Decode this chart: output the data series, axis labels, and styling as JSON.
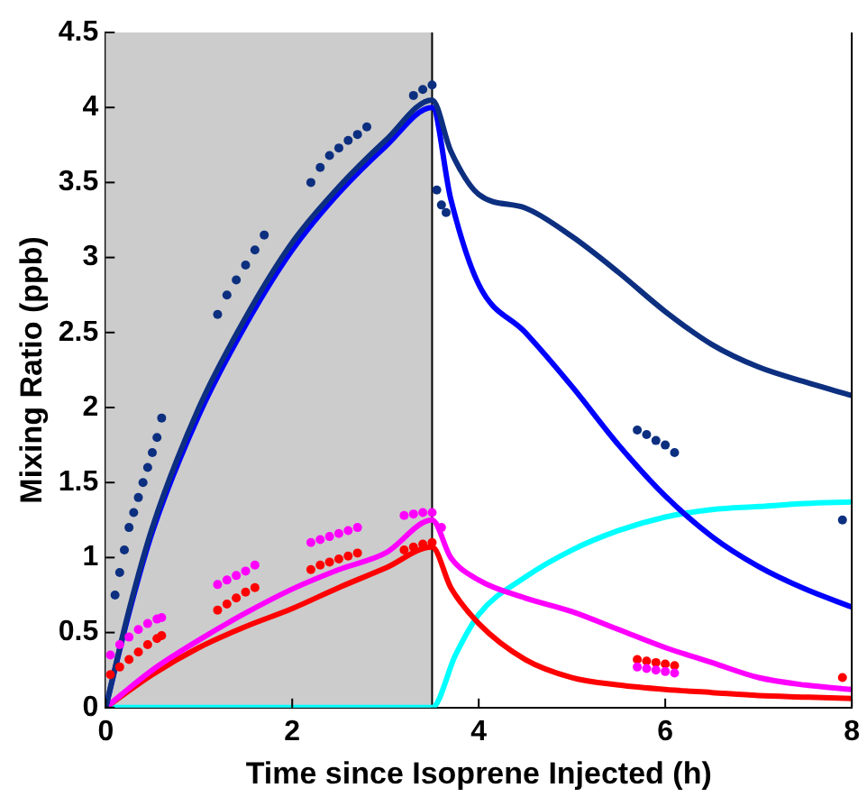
{
  "chart_data": {
    "type": "line",
    "xlabel": "Time since Isoprene Injected (h)",
    "ylabel": "Mixing Ratio (ppb)",
    "xlim": [
      0,
      8
    ],
    "xticks": [
      0,
      2,
      4,
      6,
      8
    ],
    "ylim": [
      0,
      4.5
    ],
    "yticks": [
      0,
      0.5,
      1,
      1.5,
      2,
      2.5,
      3,
      3.5,
      4,
      4.5
    ],
    "grid": false,
    "legend": false,
    "marker": "none",
    "bands": [
      {
        "axis": "x",
        "from": 0,
        "to": 3.5,
        "color": "#cccccc"
      }
    ],
    "ref_lines": [
      {
        "axis": "x",
        "value": 3.5,
        "color": "#000000"
      }
    ],
    "series": [
      {
        "color": "#0d2f80",
        "x": [
          0,
          0.25,
          0.5,
          1,
          1.5,
          2,
          2.5,
          3,
          3.5,
          3.7,
          4,
          4.5,
          5,
          5.5,
          6,
          6.5,
          7,
          7.5,
          8
        ],
        "values": [
          0,
          0.65,
          1.2,
          2.0,
          2.6,
          3.1,
          3.47,
          3.78,
          4.05,
          3.71,
          3.42,
          3.33,
          3.14,
          2.9,
          2.64,
          2.42,
          2.27,
          2.17,
          2.08
        ]
      },
      {
        "color": "#0000ff",
        "x": [
          0,
          0.25,
          0.5,
          1,
          1.5,
          2,
          2.5,
          3,
          3.5,
          3.7,
          4,
          4.5,
          5,
          5.5,
          6,
          6.5,
          7,
          7.5,
          8
        ],
        "values": [
          0,
          0.63,
          1.17,
          1.95,
          2.55,
          3.05,
          3.43,
          3.74,
          4.0,
          3.39,
          2.82,
          2.5,
          2.14,
          1.75,
          1.41,
          1.14,
          0.94,
          0.79,
          0.67
        ]
      },
      {
        "color": "#ff00ff",
        "x": [
          0,
          0.5,
          1,
          1.5,
          2,
          2.5,
          3,
          3.5,
          3.7,
          4,
          4.5,
          5,
          5.5,
          6,
          6.5,
          7,
          7.5,
          8
        ],
        "values": [
          0,
          0.25,
          0.45,
          0.63,
          0.79,
          0.92,
          1.03,
          1.25,
          1.0,
          0.85,
          0.73,
          0.64,
          0.52,
          0.4,
          0.3,
          0.2,
          0.15,
          0.12
        ]
      },
      {
        "color": "#ff0000",
        "x": [
          0,
          0.5,
          1,
          1.5,
          2,
          2.5,
          3,
          3.5,
          3.7,
          4,
          4.5,
          5,
          5.5,
          6,
          6.5,
          7,
          7.5,
          8
        ],
        "values": [
          0,
          0.22,
          0.4,
          0.54,
          0.66,
          0.8,
          0.93,
          1.07,
          0.8,
          0.56,
          0.32,
          0.2,
          0.15,
          0.12,
          0.1,
          0.08,
          0.07,
          0.06
        ]
      },
      {
        "color": "#00ffff",
        "x": [
          0,
          3.5,
          3.75,
          4,
          4.5,
          5,
          5.5,
          6,
          6.5,
          7,
          7.5,
          8
        ],
        "values": [
          0,
          0,
          0.35,
          0.62,
          0.87,
          1.05,
          1.18,
          1.27,
          1.32,
          1.34,
          1.36,
          1.37
        ]
      },
      {
        "type": "scatter",
        "marker": "circle",
        "color": "#0d2f80",
        "x": [
          0.1,
          0.15,
          0.2,
          0.25,
          0.3,
          0.35,
          0.4,
          0.45,
          0.5,
          0.55,
          0.6,
          1.2,
          1.3,
          1.4,
          1.5,
          1.6,
          1.7,
          2.2,
          2.3,
          2.4,
          2.5,
          2.6,
          2.7,
          2.8,
          3.3,
          3.4,
          3.5,
          3.55,
          3.6,
          3.65,
          5.7,
          5.8,
          5.9,
          6.0,
          6.1,
          7.9
        ],
        "values": [
          0.75,
          0.9,
          1.05,
          1.2,
          1.3,
          1.4,
          1.5,
          1.6,
          1.7,
          1.8,
          1.93,
          2.62,
          2.75,
          2.85,
          2.95,
          3.05,
          3.15,
          3.5,
          3.6,
          3.68,
          3.73,
          3.78,
          3.82,
          3.87,
          4.08,
          4.12,
          4.15,
          3.45,
          3.35,
          3.3,
          1.85,
          1.82,
          1.78,
          1.75,
          1.7,
          1.25
        ]
      },
      {
        "type": "scatter",
        "marker": "circle",
        "color": "#ff00ff",
        "x": [
          0.05,
          0.15,
          0.25,
          0.35,
          0.45,
          0.55,
          0.6,
          1.2,
          1.3,
          1.4,
          1.5,
          1.6,
          2.2,
          2.3,
          2.4,
          2.5,
          2.6,
          2.7,
          3.2,
          3.3,
          3.4,
          3.5,
          3.6,
          5.7,
          5.8,
          5.9,
          6.0,
          6.1
        ],
        "values": [
          0.35,
          0.42,
          0.47,
          0.52,
          0.56,
          0.59,
          0.6,
          0.82,
          0.85,
          0.88,
          0.91,
          0.95,
          1.1,
          1.12,
          1.14,
          1.16,
          1.18,
          1.2,
          1.28,
          1.29,
          1.3,
          1.3,
          1.2,
          0.27,
          0.26,
          0.25,
          0.24,
          0.23
        ]
      },
      {
        "type": "scatter",
        "marker": "circle",
        "color": "#ff0000",
        "x": [
          0.05,
          0.15,
          0.25,
          0.35,
          0.45,
          0.55,
          0.6,
          1.2,
          1.3,
          1.4,
          1.5,
          1.6,
          2.2,
          2.3,
          2.4,
          2.5,
          2.6,
          2.7,
          3.2,
          3.3,
          3.4,
          3.5,
          5.7,
          5.8,
          5.9,
          6.0,
          6.1,
          7.9
        ],
        "values": [
          0.22,
          0.27,
          0.32,
          0.37,
          0.42,
          0.46,
          0.48,
          0.65,
          0.69,
          0.73,
          0.77,
          0.8,
          0.92,
          0.95,
          0.97,
          0.99,
          1.01,
          1.03,
          1.05,
          1.07,
          1.09,
          1.1,
          0.32,
          0.31,
          0.3,
          0.29,
          0.28,
          0.2
        ]
      }
    ]
  }
}
